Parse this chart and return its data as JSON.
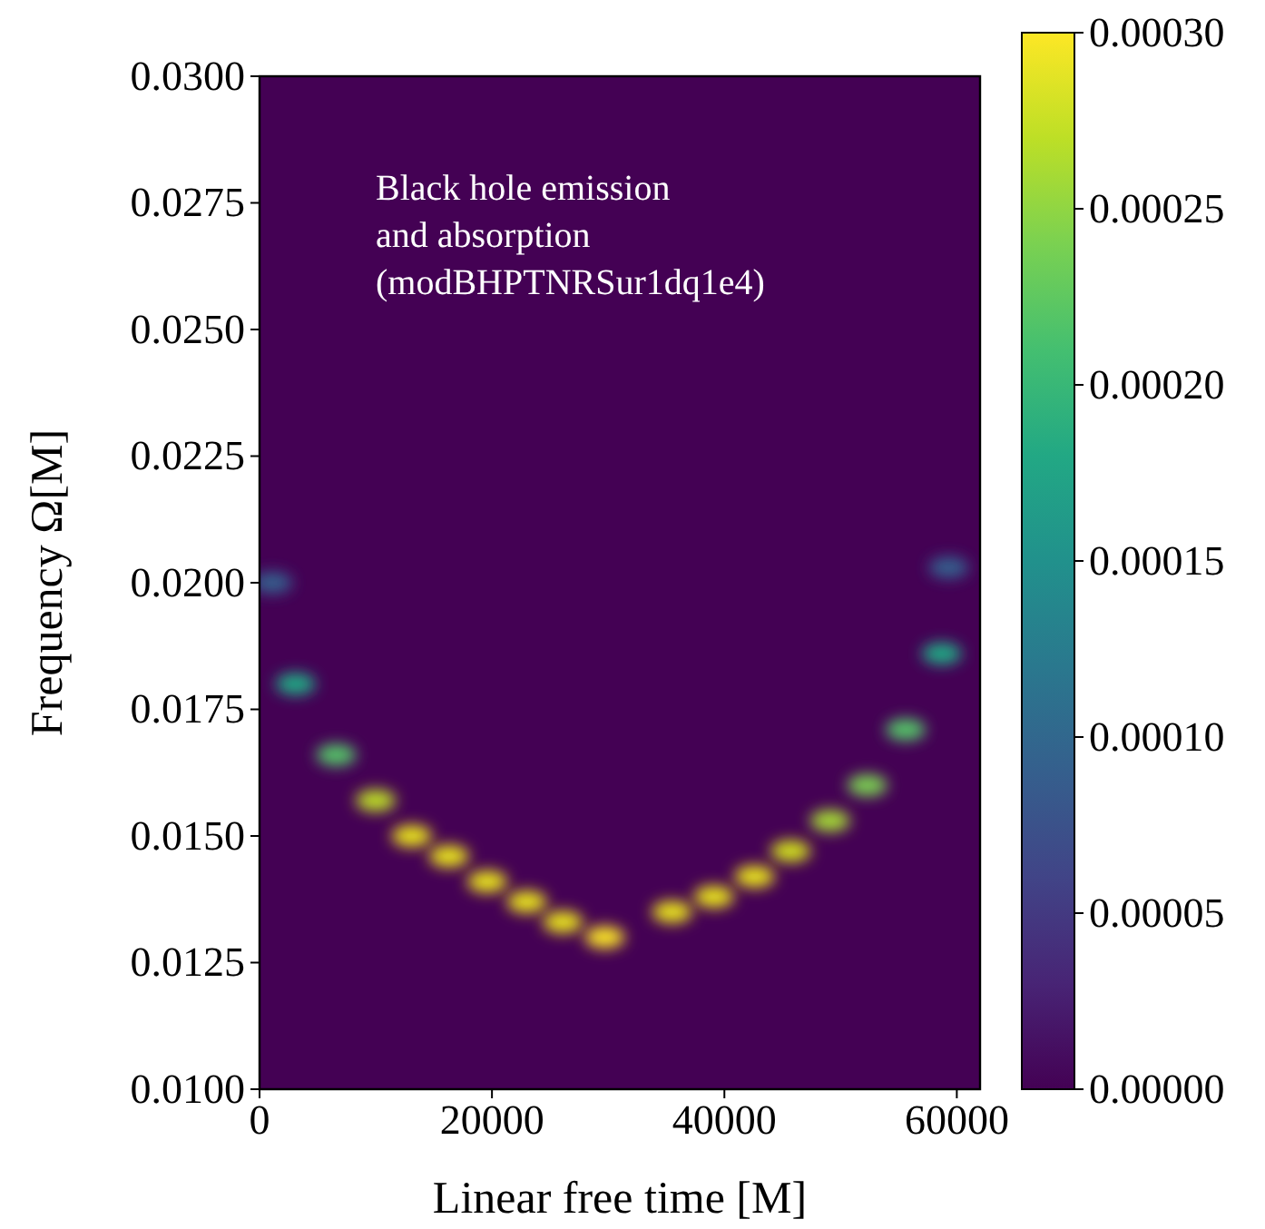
{
  "chart_data": {
    "type": "scatter",
    "xlabel": "Linear free time [M]",
    "ylabel": "Frequency Ω[M]",
    "marker": "circle",
    "annotations": [
      "Black hole emission\nand absorption\n(modBHPTNRSur1dq1e4)"
    ],
    "x": [
      1100,
      3100,
      6600,
      10000,
      13100,
      16300,
      19600,
      23000,
      26100,
      29700,
      35500,
      39100,
      42600,
      45700,
      49100,
      52300,
      55600,
      58700,
      59300
    ],
    "values": [
      0.02,
      0.018,
      0.0166,
      0.0157,
      0.015,
      0.0146,
      0.0141,
      0.0137,
      0.0133,
      0.013,
      0.0135,
      0.0138,
      0.0142,
      0.0147,
      0.0153,
      0.016,
      0.0171,
      0.0186,
      0.0203
    ],
    "cvalues": [
      9e-05,
      0.00018,
      0.00022,
      0.00027,
      0.00029,
      0.00029,
      0.00029,
      0.00029,
      0.00029,
      0.0003,
      0.00029,
      0.00029,
      0.00029,
      0.00028,
      0.00026,
      0.00024,
      0.00022,
      0.00018,
      9e-05
    ],
    "xlim": [
      0,
      62000
    ],
    "xticks": [
      0,
      20000,
      40000,
      60000
    ],
    "ylim": [
      0.01,
      0.03
    ],
    "yticks": [
      {
        "value": 0.01,
        "label": "0.0100"
      },
      {
        "value": 0.0125,
        "label": "0.0125"
      },
      {
        "value": 0.015,
        "label": "0.0150"
      },
      {
        "value": 0.0175,
        "label": "0.0175"
      },
      {
        "value": 0.02,
        "label": "0.0200"
      },
      {
        "value": 0.0225,
        "label": "0.0225"
      },
      {
        "value": 0.025,
        "label": "0.0250"
      },
      {
        "value": 0.0275,
        "label": "0.0275"
      },
      {
        "value": 0.03,
        "label": "0.0300"
      }
    ],
    "clim": [
      0,
      0.0003
    ],
    "cticks": [
      {
        "value": 0,
        "label": "0.00000"
      },
      {
        "value": 5e-05,
        "label": "0.00005"
      },
      {
        "value": 0.0001,
        "label": "0.00010"
      },
      {
        "value": 0.00015,
        "label": "0.00015"
      },
      {
        "value": 0.0002,
        "label": "0.00020"
      },
      {
        "value": 0.00025,
        "label": "0.00025"
      },
      {
        "value": 0.0003,
        "label": "0.00030"
      }
    ],
    "grid": false
  }
}
